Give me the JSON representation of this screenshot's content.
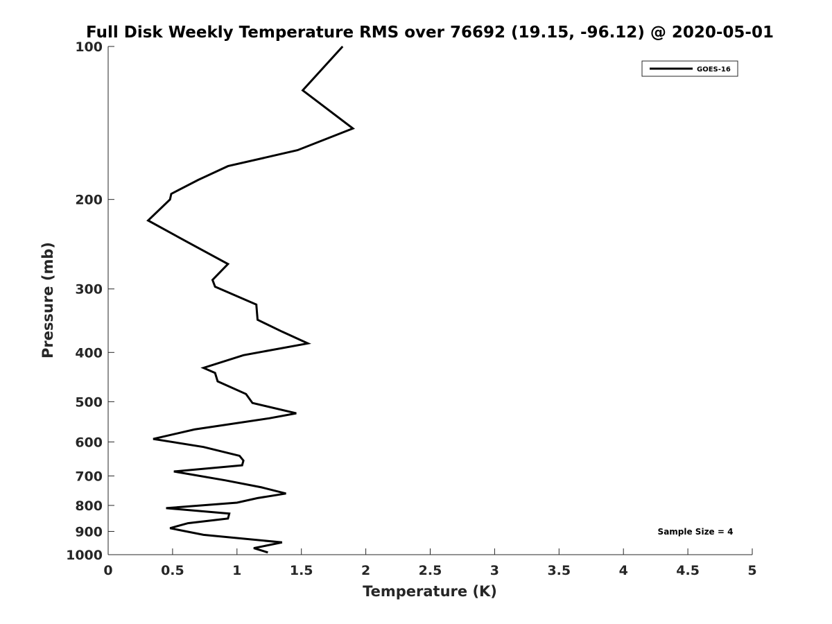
{
  "chart_data": {
    "type": "line",
    "title": "Full Disk Weekly Temperature RMS over 76692 (19.15, -96.12) @ 2020-05-01",
    "xlabel": "Temperature (K)",
    "ylabel": "Pressure (mb)",
    "xlim": [
      0,
      5
    ],
    "ylim": [
      100,
      1000
    ],
    "y_scale": "log",
    "y_reversed": true,
    "grid": false,
    "legend_position": "top-right",
    "x_ticks": [
      "0",
      "0.5",
      "1",
      "1.5",
      "2",
      "2.5",
      "3",
      "3.5",
      "4",
      "4.5",
      "5"
    ],
    "y_ticks": [
      "100",
      "200",
      "300",
      "400",
      "500",
      "600",
      "700",
      "800",
      "900",
      "1000"
    ],
    "series": [
      {
        "name": "GOES-16",
        "color": "#000000",
        "x": [
          1.82,
          1.51,
          1.9,
          1.47,
          0.93,
          0.7,
          0.49,
          0.48,
          0.31,
          0.62,
          0.93,
          0.81,
          0.83,
          1.15,
          1.16,
          1.35,
          1.55,
          1.05,
          0.74,
          0.83,
          0.85,
          1.07,
          1.12,
          1.46,
          1.25,
          0.67,
          0.35,
          0.74,
          1.02,
          1.05,
          1.04,
          0.51,
          0.91,
          1.19,
          1.38,
          1.16,
          1.0,
          0.45,
          0.94,
          0.93,
          0.62,
          0.48,
          0.74,
          1.35,
          1.13,
          1.24
        ],
        "y": [
          100,
          122,
          145,
          160,
          172,
          183,
          195,
          200,
          220,
          243,
          268,
          288,
          297,
          322,
          345,
          364,
          384,
          405,
          429,
          439,
          456,
          483,
          503,
          527,
          539,
          567,
          592,
          614,
          639,
          653,
          667,
          686,
          714,
          737,
          758,
          774,
          790,
          810,
          830,
          849,
          867,
          887,
          914,
          946,
          971,
          990
        ]
      }
    ],
    "annotations": [
      "Sample Size = 4"
    ]
  }
}
